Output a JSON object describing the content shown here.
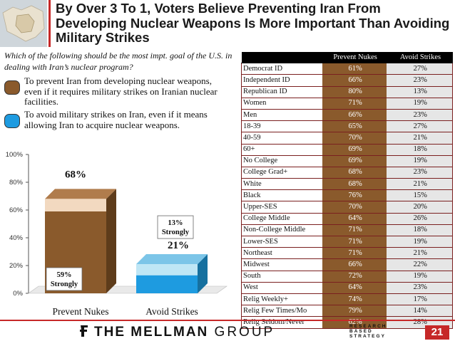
{
  "header": {
    "title": "By Over 3 To 1, Voters Believe Preventing Iran From Developing Nuclear Weapons Is More Important Than Avoiding Military Strikes"
  },
  "question": "Which of the following should be the most impt. goal of the U.S. in dealing with Iran’s nuclear program?",
  "legend": [
    {
      "label": "To prevent Iran from developing nuclear weapons, even if it requires military strikes on Iranian nuclear facilities.",
      "color": "#8a5a2c"
    },
    {
      "label": "To avoid military strikes on Iran, even if it means allowing Iran to acquire nuclear weapons.",
      "color": "#1e9be0"
    }
  ],
  "chart_data": [
    {
      "type": "bar",
      "categories": [
        "Prevent Nukes",
        "Avoid Strikes"
      ],
      "ylim": [
        0,
        100
      ],
      "yticks": [
        "0%",
        "20%",
        "40%",
        "60%",
        "80%",
        "100%"
      ],
      "series": [
        {
          "values": [
            59,
            13
          ]
        },
        {
          "values": [
            9,
            8
          ]
        }
      ],
      "totals": [
        68,
        21
      ],
      "total_labels": [
        "68%",
        "21%"
      ],
      "strongly_labels": [
        {
          "pct": "59%",
          "text": "Strongly"
        },
        {
          "pct": "13%",
          "text": "Strongly"
        }
      ],
      "colors": {
        "prevent_strong": "#8a5a2c",
        "prevent_soft": "#f2d9c0",
        "avoid_strong": "#1e9be0",
        "avoid_soft": "#bfe6f5"
      }
    },
    {
      "type": "table",
      "columns": [
        "",
        "Prevent Nukes",
        "Avoid Strikes"
      ],
      "rows": [
        {
          "group": "Democrat ID",
          "prevent": "61%",
          "avoid": "27%"
        },
        {
          "group": "Independent ID",
          "prevent": "66%",
          "avoid": "23%"
        },
        {
          "group": "Republican ID",
          "prevent": "80%",
          "avoid": "13%"
        },
        {
          "group": "Women",
          "prevent": "71%",
          "avoid": "19%"
        },
        {
          "group": "Men",
          "prevent": "66%",
          "avoid": "23%"
        },
        {
          "group": "18-39",
          "prevent": "65%",
          "avoid": "27%"
        },
        {
          "group": "40-59",
          "prevent": "70%",
          "avoid": "21%"
        },
        {
          "group": "60+",
          "prevent": "69%",
          "avoid": "18%"
        },
        {
          "group": "No College",
          "prevent": "69%",
          "avoid": "19%"
        },
        {
          "group": "College Grad+",
          "prevent": "68%",
          "avoid": "23%"
        },
        {
          "group": "White",
          "prevent": "68%",
          "avoid": "21%"
        },
        {
          "group": "Black",
          "prevent": "76%",
          "avoid": "15%"
        },
        {
          "group": "Upper-SES",
          "prevent": "70%",
          "avoid": "20%"
        },
        {
          "group": "College Middle",
          "prevent": "64%",
          "avoid": "26%"
        },
        {
          "group": "Non-College Middle",
          "prevent": "71%",
          "avoid": "18%"
        },
        {
          "group": "Lower-SES",
          "prevent": "71%",
          "avoid": "19%"
        },
        {
          "group": "Northeast",
          "prevent": "71%",
          "avoid": "21%"
        },
        {
          "group": "Midwest",
          "prevent": "66%",
          "avoid": "22%"
        },
        {
          "group": "South",
          "prevent": "72%",
          "avoid": "19%"
        },
        {
          "group": "West",
          "prevent": "64%",
          "avoid": "23%"
        },
        {
          "group": "Relig Weekly+",
          "prevent": "74%",
          "avoid": "17%"
        },
        {
          "group": "Relig Few Times/Mo",
          "prevent": "79%",
          "avoid": "14%"
        },
        {
          "group": "Relig Seldom/Never",
          "prevent": "62%",
          "avoid": "28%"
        }
      ]
    }
  ],
  "footer": {
    "logo_the": "THE ",
    "logo_mellman": "MELLMAN",
    "logo_group": " GROUP",
    "tagline": [
      "RESEARCH",
      "BASED",
      "STRATEGY"
    ],
    "page_number": "21"
  },
  "colors": {
    "accent_red": "#c62828",
    "table_header": "#000000"
  }
}
